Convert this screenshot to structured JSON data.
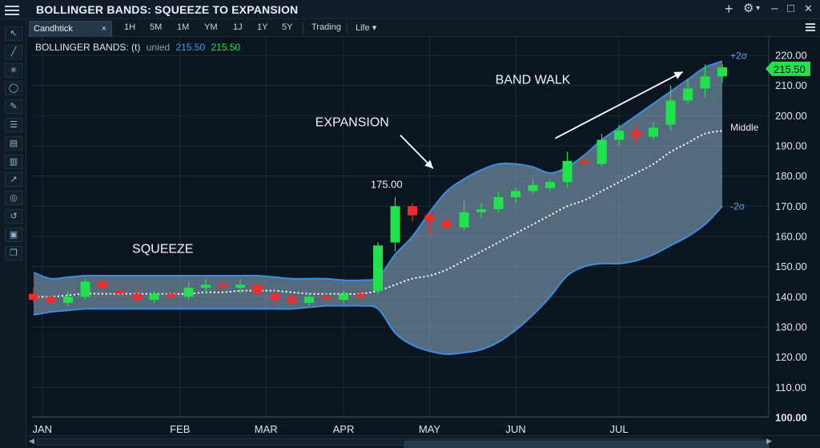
{
  "app": {
    "title": "BOLLINGER BANDS: SQUEEZE TO EXPANSION",
    "controls": {
      "add": "+",
      "gear": "⚙",
      "gear_caret": "▾",
      "minimize": "–",
      "maximize": "□",
      "close": "✕"
    }
  },
  "tabs": {
    "active_label": "Candhtick",
    "close_glyph": "×",
    "timeframes": [
      "1H",
      "5M",
      "1M",
      "YM",
      "1J",
      "1Y",
      "5Y"
    ],
    "trading_label": "Trading",
    "life_label": "Life ▾"
  },
  "tools": [
    "cursor-icon",
    "line-icon",
    "crosshair-icon",
    "circle-icon",
    "brush-icon",
    "list-icon",
    "layers-icon",
    "bar-chart-icon",
    "trend-icon",
    "compass-icon",
    "undo-icon",
    "lock-icon",
    "copy-icon"
  ],
  "legend": {
    "name": "BOLLINGER BANDS: (t)",
    "unit": "unied",
    "value_a": "215.50",
    "value_b": "215.50"
  },
  "chart_data": {
    "type": "candlestick",
    "title": "BOLLINGER BANDS: SQUEEZE TO EXPANSION",
    "x_labels": [
      "JAN",
      "FEB",
      "MAR",
      "APR",
      "MAY",
      "JUN",
      "JUL"
    ],
    "x_label_positions": [
      0.5,
      8.5,
      13.5,
      18,
      23,
      28,
      34
    ],
    "ylim": [
      100,
      220
    ],
    "y_ticks": [
      100,
      110,
      120,
      130,
      140,
      150,
      160,
      170,
      180,
      190,
      200,
      210,
      220
    ],
    "y_tick_format": "0.00",
    "last_price": "215.50",
    "colors": {
      "up": "#21e24d",
      "down": "#f02d2d",
      "band_line": "#3a8ee0",
      "band_fill": "#8fb2c8",
      "middle": "#ffffff",
      "arrow": "#ffffff"
    },
    "candles": [
      {
        "o": 141,
        "h": 143,
        "l": 138,
        "c": 139
      },
      {
        "o": 140,
        "h": 141,
        "l": 138,
        "c": 138
      },
      {
        "o": 138,
        "h": 142,
        "l": 137,
        "c": 140
      },
      {
        "o": 140,
        "h": 146,
        "l": 139,
        "c": 145
      },
      {
        "o": 145,
        "h": 146,
        "l": 142,
        "c": 143
      },
      {
        "o": 142,
        "h": 144,
        "l": 139,
        "c": 141
      },
      {
        "o": 141,
        "h": 143,
        "l": 138,
        "c": 139
      },
      {
        "o": 139,
        "h": 142,
        "l": 138,
        "c": 141
      },
      {
        "o": 141,
        "h": 142,
        "l": 139,
        "c": 140
      },
      {
        "o": 140,
        "h": 145,
        "l": 139,
        "c": 143
      },
      {
        "o": 143,
        "h": 146,
        "l": 141,
        "c": 144
      },
      {
        "o": 144,
        "h": 145,
        "l": 142,
        "c": 143
      },
      {
        "o": 143,
        "h": 146,
        "l": 141,
        "c": 144
      },
      {
        "o": 144,
        "h": 145,
        "l": 140,
        "c": 141
      },
      {
        "o": 141,
        "h": 142,
        "l": 137,
        "c": 139
      },
      {
        "o": 140,
        "h": 141,
        "l": 137,
        "c": 138
      },
      {
        "o": 138,
        "h": 141,
        "l": 137,
        "c": 140
      },
      {
        "o": 140,
        "h": 141,
        "l": 138,
        "c": 139
      },
      {
        "o": 139,
        "h": 142,
        "l": 138,
        "c": 141
      },
      {
        "o": 141,
        "h": 142,
        "l": 139,
        "c": 140
      },
      {
        "o": 142,
        "h": 158,
        "l": 141,
        "c": 157
      },
      {
        "o": 158,
        "h": 173,
        "l": 155,
        "c": 170
      },
      {
        "o": 170,
        "h": 171,
        "l": 165,
        "c": 167
      },
      {
        "o": 167,
        "h": 168,
        "l": 161,
        "c": 165
      },
      {
        "o": 165,
        "h": 167,
        "l": 162,
        "c": 163
      },
      {
        "o": 163,
        "h": 172,
        "l": 162,
        "c": 168
      },
      {
        "o": 168,
        "h": 171,
        "l": 166,
        "c": 169
      },
      {
        "o": 169,
        "h": 175,
        "l": 168,
        "c": 173
      },
      {
        "o": 173,
        "h": 176,
        "l": 171,
        "c": 175
      },
      {
        "o": 175,
        "h": 179,
        "l": 174,
        "c": 177
      },
      {
        "o": 176,
        "h": 179,
        "l": 175,
        "c": 178
      },
      {
        "o": 178,
        "h": 188,
        "l": 176,
        "c": 185
      },
      {
        "o": 185,
        "h": 187,
        "l": 183,
        "c": 184
      },
      {
        "o": 184,
        "h": 194,
        "l": 183,
        "c": 192
      },
      {
        "o": 192,
        "h": 197,
        "l": 190,
        "c": 195
      },
      {
        "o": 195,
        "h": 197,
        "l": 191,
        "c": 193
      },
      {
        "o": 193,
        "h": 198,
        "l": 192,
        "c": 196
      },
      {
        "o": 197,
        "h": 210,
        "l": 195,
        "c": 205
      },
      {
        "o": 205,
        "h": 212,
        "l": 204,
        "c": 209
      },
      {
        "o": 209,
        "h": 217,
        "l": 206,
        "c": 213
      },
      {
        "o": 213,
        "h": 217,
        "l": 211,
        "c": 216
      }
    ],
    "upper_band": [
      148,
      146,
      146.5,
      147,
      147,
      147,
      147,
      147,
      147,
      147,
      147,
      147,
      147,
      147,
      146.5,
      146,
      146,
      146,
      145.5,
      145.5,
      146.5,
      154,
      160,
      168,
      175,
      179,
      182,
      184,
      184,
      183,
      181,
      183,
      187,
      192,
      196,
      200,
      204,
      208,
      212,
      216,
      218
    ],
    "middle_band": [
      140,
      140,
      140.5,
      141,
      141,
      141,
      141,
      141,
      141,
      141,
      141.5,
      141.5,
      142,
      142,
      142,
      141.5,
      141,
      141,
      141,
      141,
      142,
      144,
      146,
      147,
      149,
      152,
      155,
      158,
      161,
      164,
      167,
      170,
      172,
      175,
      178,
      181,
      184,
      188,
      191,
      194,
      195
    ],
    "lower_band": [
      134,
      135,
      135.5,
      136,
      136,
      136,
      136,
      136,
      136,
      136,
      136,
      136,
      136,
      136,
      136,
      136,
      136.5,
      137,
      137,
      137,
      136,
      128,
      124,
      122,
      121,
      121.5,
      122.5,
      125,
      129,
      134,
      140,
      147,
      150,
      151,
      151,
      152,
      154,
      157,
      160,
      164,
      170
    ],
    "annotations": [
      {
        "text": "SQUEEZE",
        "at": [
          7.5,
          154.5
        ]
      },
      {
        "text": "EXPANSION",
        "at": [
          18.5,
          196.5
        ]
      },
      {
        "text": "BAND WALK",
        "at": [
          29,
          210.5
        ]
      },
      {
        "text": "175.00",
        "at": [
          20.5,
          176
        ]
      }
    ],
    "band_labels": {
      "upper": "+2σ",
      "middle": "Middle",
      "lower": "-2σ"
    }
  }
}
